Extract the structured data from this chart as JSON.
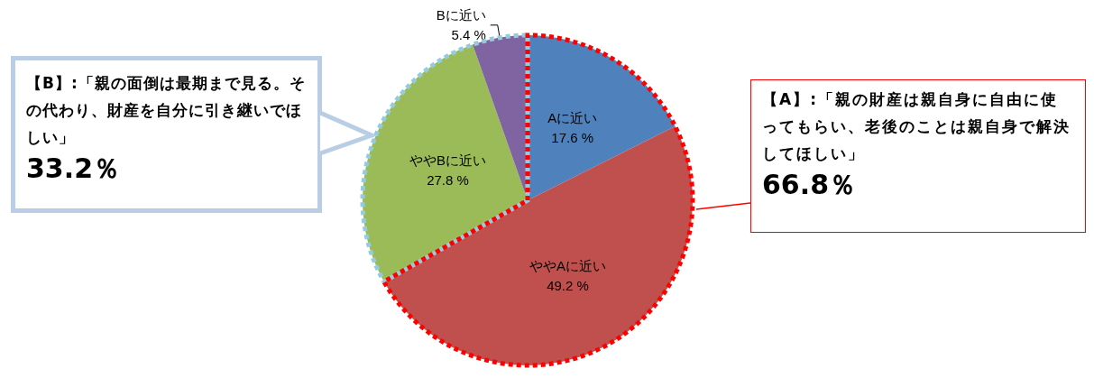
{
  "chart_data": {
    "type": "pie",
    "categories": [
      "Aに近い",
      "ややAに近い",
      "ややBに近い",
      "Bに近い"
    ],
    "values": [
      17.6,
      49.2,
      27.8,
      5.4
    ],
    "colors": [
      "#4f81bd",
      "#c0504d",
      "#9bbb59",
      "#8064a2"
    ],
    "value_labels": [
      "17.6 %",
      "49.2 %",
      "27.8 %",
      "5.4 %"
    ],
    "legend": false,
    "annotations": [
      "【B】:「親の面倒は最期まで見る。その代わり、財産を自分に引き継いでほしい」",
      "33.2％",
      "【A】:「親の財産は親自身に自由に使ってもらい、老後のことは親自身で解決してほしい」",
      "66.8％"
    ]
  }
}
